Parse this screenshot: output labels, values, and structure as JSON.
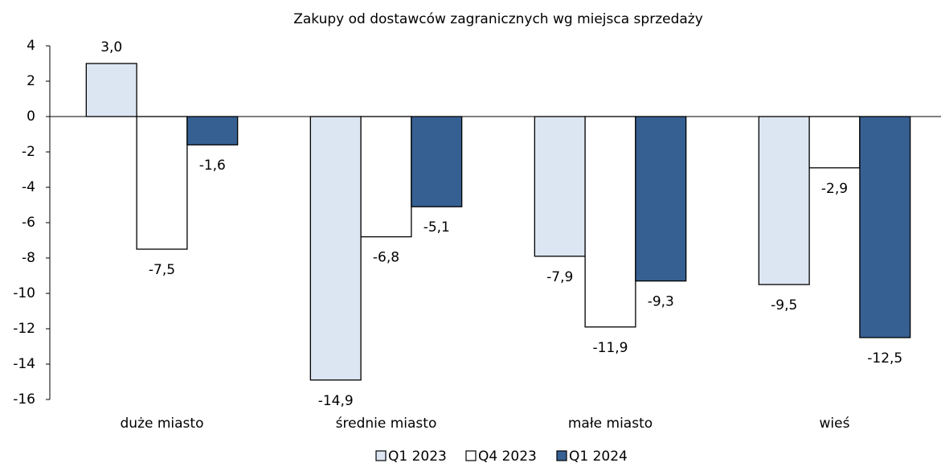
{
  "chart_data": {
    "type": "bar",
    "title": "Zakupy od dostawców zagranicznych wg miejsca sprzedaży",
    "categories": [
      "duże miasto",
      "średnie miasto",
      "małe miasto",
      "wieś"
    ],
    "series": [
      {
        "name": "Q1 2023",
        "color": "#dce6f2",
        "values": [
          3.0,
          -14.9,
          -7.9,
          -9.5
        ],
        "value_labels": [
          "3,0",
          "-14,9",
          "-7,9",
          "-9,5"
        ]
      },
      {
        "name": "Q4 2023",
        "color": "#ffffff",
        "values": [
          -7.5,
          -6.8,
          -11.9,
          -2.9
        ],
        "value_labels": [
          "-7,5",
          "-6,8",
          "-11,9",
          "-2,9"
        ]
      },
      {
        "name": "Q1 2024",
        "color": "#366092",
        "values": [
          -1.6,
          -5.1,
          -9.3,
          -12.5
        ],
        "value_labels": [
          "-1,6",
          "-5,1",
          "-9,3",
          "-12,5"
        ]
      }
    ],
    "ylim": [
      -16,
      4
    ],
    "yticks": [
      4,
      2,
      0,
      -2,
      -4,
      -6,
      -8,
      -10,
      -12,
      -14,
      -16
    ],
    "legend": "bottom"
  }
}
